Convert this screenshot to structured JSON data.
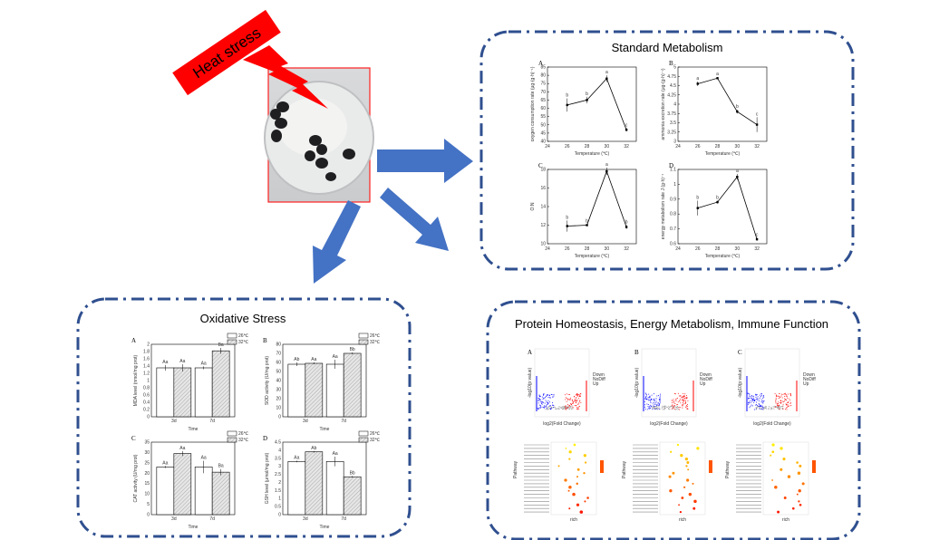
{
  "colors": {
    "box_border": "#2f4f8f",
    "arrow": "#4472c4",
    "heat": "#ff0000",
    "up": "#ff0000",
    "down": "#0000ff",
    "ns": "#a0a0a0"
  },
  "heat_label": "Heat stress",
  "standard_metabolism": {
    "title": "Standard Metabolism",
    "x_label": "Temperature (℃)",
    "x_ticks": [
      24,
      26,
      28,
      30,
      32
    ],
    "panels": [
      {
        "letter": "A",
        "ylabel": "oxygen consumption rate (μg·(g·h)⁻¹)",
        "x": [
          26,
          28,
          30,
          32
        ],
        "y": [
          62,
          65,
          78,
          47
        ],
        "err": [
          4,
          2,
          2,
          1
        ],
        "sig": [
          "b",
          "b",
          "a",
          "c"
        ],
        "ylim": [
          40,
          85
        ],
        "yticks": [
          40,
          45,
          50,
          55,
          60,
          65,
          70,
          75,
          80,
          85
        ]
      },
      {
        "letter": "B",
        "ylabel": "ammonia excretion rate (μg·(g·h)⁻¹)",
        "x": [
          26,
          28,
          30,
          32
        ],
        "y": [
          4.55,
          4.7,
          3.8,
          3.45
        ],
        "err": [
          0.06,
          0.03,
          0.05,
          0.2
        ],
        "sig": [
          "a",
          "a",
          "b",
          "c"
        ],
        "ylim": [
          3.0,
          5.0
        ],
        "yticks": [
          3.0,
          3.25,
          3.5,
          3.75,
          4.0,
          4.25,
          4.5,
          4.75,
          5.0
        ]
      },
      {
        "letter": "C",
        "ylabel": "O:N",
        "x": [
          26,
          28,
          30,
          32
        ],
        "y": [
          11.9,
          12.0,
          17.8,
          11.8
        ],
        "err": [
          0.6,
          0.1,
          0.4,
          0.2
        ],
        "sig": [
          "b",
          "b",
          "a",
          "b"
        ],
        "ylim": [
          10,
          18
        ],
        "yticks": [
          10,
          12,
          14,
          16,
          18
        ]
      },
      {
        "letter": "D",
        "ylabel": "energy metabolism rate J (g·h)⁻¹",
        "x": [
          26,
          28,
          30,
          32
        ],
        "y": [
          0.84,
          0.88,
          1.05,
          0.63
        ],
        "err": [
          0.05,
          0.01,
          0.02,
          0.01
        ],
        "sig": [
          "b",
          "b",
          "a",
          "c"
        ],
        "ylim": [
          0.6,
          1.1
        ],
        "yticks": [
          0.6,
          0.7,
          0.8,
          0.9,
          1.0,
          1.1
        ]
      }
    ]
  },
  "oxidative_stress": {
    "title": "Oxidative Stress",
    "x_label": "Time",
    "groups": [
      "3d",
      "7d"
    ],
    "legend": [
      "26℃",
      "32℃"
    ],
    "panels": [
      {
        "letter": "A",
        "ylabel": "MDA level (nmol/mg prot)",
        "values": [
          [
            1.35,
            1.35
          ],
          [
            1.35,
            1.82
          ]
        ],
        "err": [
          [
            0.08,
            0.1
          ],
          [
            0.04,
            0.08
          ]
        ],
        "sig": [
          [
            "Aa",
            "Aa"
          ],
          [
            "Aa",
            "Ba"
          ]
        ],
        "ylim": [
          0,
          2.0
        ],
        "yticks": [
          0.0,
          0.2,
          0.4,
          0.6,
          0.8,
          1.0,
          1.2,
          1.4,
          1.6,
          1.8,
          2.0
        ]
      },
      {
        "letter": "B",
        "ylabel": "SOD activity (U/mg prot)",
        "values": [
          [
            58,
            59
          ],
          [
            58,
            70
          ]
        ],
        "err": [
          [
            2,
            1
          ],
          [
            5,
            1
          ]
        ],
        "sig": [
          [
            "Ab",
            "Aa"
          ],
          [
            "Aa",
            "Bb"
          ]
        ],
        "ylim": [
          0,
          80
        ],
        "yticks": [
          0,
          10,
          20,
          30,
          40,
          50,
          60,
          70,
          80
        ]
      },
      {
        "letter": "C",
        "ylabel": "CAT activity (U/mg prot)",
        "values": [
          [
            23,
            29.5
          ],
          [
            23,
            20.5
          ]
        ],
        "err": [
          [
            0.5,
            1.2
          ],
          [
            3,
            1.5
          ]
        ],
        "sig": [
          [
            "Aa",
            "Aa"
          ],
          [
            "Aa",
            "Ba"
          ]
        ],
        "ylim": [
          0,
          35
        ],
        "yticks": [
          0,
          5,
          10,
          15,
          20,
          25,
          30,
          35
        ]
      },
      {
        "letter": "D",
        "ylabel": "GSH level (μmol/mg prot)",
        "values": [
          [
            3.3,
            3.9
          ],
          [
            3.3,
            2.35
          ]
        ],
        "err": [
          [
            0.05,
            0.05
          ],
          [
            0.3,
            0.05
          ]
        ],
        "sig": [
          [
            "Aa",
            "Ab"
          ],
          [
            "Aa",
            "Bb"
          ]
        ],
        "ylim": [
          0,
          4.5
        ],
        "yticks": [
          0.0,
          0.5,
          1.0,
          1.5,
          2.0,
          2.5,
          3.0,
          3.5,
          4.0,
          4.5
        ]
      }
    ]
  },
  "protein_homeostasis": {
    "title": "Protein Homeostasis, Energy Metabolism, Immune Function",
    "volcano_letters": [
      "A",
      "B",
      "C"
    ],
    "volcano_xlabel": "log2(Fold Change)",
    "volcano_ylabel": "-log10(p value)",
    "legend_items": [
      "Down",
      "NoDiff",
      "Up"
    ],
    "dot_ylabel": "Pathway",
    "dot_xlabel": "rich"
  }
}
